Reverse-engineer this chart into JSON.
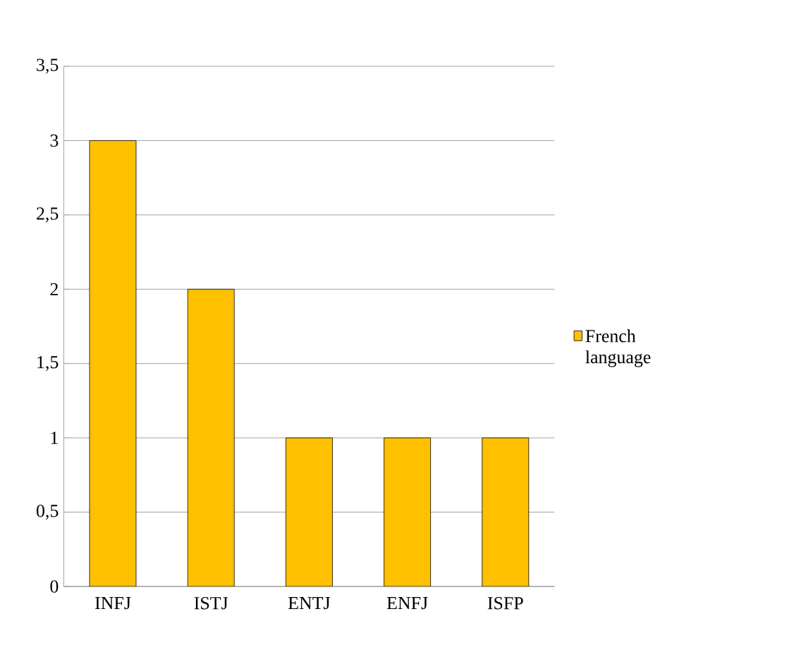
{
  "chart_data": {
    "type": "bar",
    "categories": [
      "INFJ",
      "ISTJ",
      "ENTJ",
      "ENFJ",
      "ISFP"
    ],
    "series": [
      {
        "name": "French language",
        "color": "#ffc000",
        "values": [
          3,
          2,
          1,
          1,
          1
        ]
      }
    ],
    "ylim": [
      0,
      3.5
    ],
    "yticks": [
      0,
      {
        "value": 0.5,
        "label": "0,5"
      },
      1,
      {
        "value": 1.5,
        "label": "1,5"
      },
      2,
      {
        "value": 2.5,
        "label": "2,5"
      },
      3,
      {
        "value": 3.5,
        "label": "3,5"
      }
    ],
    "grid": "y",
    "legend": "right"
  }
}
